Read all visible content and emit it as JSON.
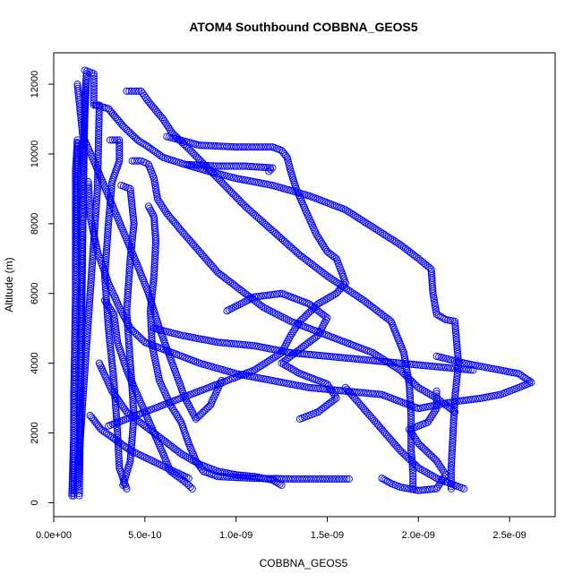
{
  "chart_data": {
    "type": "scatter",
    "title": "ATOM4 Southbound COBBNA_GEOS5",
    "xlabel": "COBBNA_GEOS5",
    "ylabel": "Altitude (m)",
    "xlim": [
      0,
      2.75e-09
    ],
    "ylim": [
      -400,
      12900
    ],
    "x_ticks": [
      0,
      5e-10,
      1e-09,
      1.5e-09,
      2e-09,
      2.5e-09
    ],
    "x_tick_labels": [
      "0.0e+00",
      "5.0e-10",
      "1.0e-09",
      "1.5e-09",
      "2.0e-09",
      "2.5e-09"
    ],
    "y_ticks": [
      0,
      2000,
      4000,
      6000,
      8000,
      10000,
      12000
    ],
    "y_tick_labels": [
      "0",
      "2000",
      "4000",
      "6000",
      "8000",
      "10000",
      "12000"
    ],
    "marker": "open-circle",
    "grid": false,
    "color": "#0000ff",
    "series": [
      {
        "points": [
          [
            1.1e-10,
            200
          ],
          [
            1.1e-10,
            3000
          ],
          [
            1.2e-10,
            6000
          ],
          [
            1.2e-10,
            9500
          ],
          [
            1.3e-10,
            10400
          ],
          [
            1.3e-10,
            10300
          ],
          [
            1.2e-10,
            6000
          ],
          [
            1.1e-10,
            2000
          ],
          [
            1e-10,
            200
          ]
        ]
      },
      {
        "points": [
          [
            1.4e-10,
            200
          ],
          [
            1.5e-10,
            4000
          ],
          [
            1.6e-10,
            8000
          ],
          [
            1.7e-10,
            11500
          ],
          [
            1.8e-10,
            12300
          ],
          [
            1.7e-10,
            11000
          ],
          [
            1.5e-10,
            6000
          ],
          [
            1.4e-10,
            1000
          ]
        ]
      },
      {
        "points": [
          [
            1.7e-10,
            12400
          ],
          [
            2.2e-10,
            12300
          ],
          [
            2.2e-10,
            11400
          ],
          [
            2.5e-10,
            11400
          ],
          [
            2.4e-10,
            9000
          ],
          [
            2e-10,
            6000
          ],
          [
            1.6e-10,
            3000
          ],
          [
            1.3e-10,
            500
          ]
        ]
      },
      {
        "points": [
          [
            2.3e-10,
            11400
          ],
          [
            3e-10,
            11300
          ],
          [
            3.8e-10,
            10800
          ],
          [
            4.6e-10,
            10400
          ],
          [
            5.2e-10,
            10200
          ],
          [
            6e-10,
            9900
          ],
          [
            7.2e-10,
            9700
          ],
          [
            8.5e-10,
            9500
          ],
          [
            1e-09,
            9300
          ],
          [
            1.2e-09,
            9100
          ],
          [
            1.4e-09,
            8800
          ],
          [
            1.6e-09,
            8400
          ],
          [
            1.75e-09,
            7900
          ],
          [
            1.9e-09,
            7400
          ],
          [
            2e-09,
            7000
          ],
          [
            2.07e-09,
            6700
          ],
          [
            2.08e-09,
            6000
          ],
          [
            2.1e-09,
            5400
          ],
          [
            2.15e-09,
            5250
          ],
          [
            2.2e-09,
            5200
          ],
          [
            2.22e-09,
            4000
          ],
          [
            2.2e-09,
            3000
          ],
          [
            2.19e-09,
            2000
          ],
          [
            2.18e-09,
            1000
          ],
          [
            2.18e-09,
            400
          ]
        ]
      },
      {
        "points": [
          [
            4e-10,
            11800
          ],
          [
            4.8e-10,
            11800
          ],
          [
            5.2e-10,
            11500
          ],
          [
            6e-10,
            11000
          ],
          [
            6.5e-10,
            10600
          ],
          [
            7.5e-10,
            10100
          ],
          [
            9e-10,
            9300
          ],
          [
            1.05e-09,
            8500
          ],
          [
            1.2e-09,
            7800
          ],
          [
            1.35e-09,
            7100
          ],
          [
            1.5e-09,
            6500
          ],
          [
            1.7e-09,
            5800
          ],
          [
            1.85e-09,
            5200
          ],
          [
            1.92e-09,
            4300
          ],
          [
            1.95e-09,
            3400
          ],
          [
            1.96e-09,
            2500
          ],
          [
            1.96e-09,
            1500
          ],
          [
            1.97e-09,
            900
          ],
          [
            1.97e-09,
            400
          ]
        ]
      },
      {
        "points": [
          [
            6.2e-10,
            10500
          ],
          [
            8e-10,
            10250
          ],
          [
            1e-09,
            10200
          ],
          [
            1.2e-09,
            10200
          ],
          [
            1.25e-09,
            10100
          ],
          [
            1.28e-09,
            9900
          ],
          [
            1.3e-09,
            9500
          ],
          [
            1.33e-09,
            9000
          ],
          [
            1.38e-09,
            8400
          ],
          [
            1.44e-09,
            7700
          ],
          [
            1.5e-09,
            7200
          ],
          [
            1.55e-09,
            7000
          ],
          [
            1.58e-09,
            6600
          ],
          [
            1.6e-09,
            6300
          ],
          [
            1.55e-09,
            6000
          ],
          [
            1.45e-09,
            5700
          ],
          [
            1.35e-09,
            5200
          ],
          [
            1.3e-09,
            4800
          ],
          [
            1.25e-09,
            4300
          ],
          [
            1.1e-09,
            3800
          ],
          [
            9e-10,
            3400
          ],
          [
            7e-10,
            3000
          ],
          [
            5e-10,
            2600
          ],
          [
            3e-10,
            2200
          ]
        ]
      },
      {
        "points": [
          [
            7.2e-10,
            9700
          ],
          [
            9e-10,
            9650
          ],
          [
            1.05e-09,
            9650
          ],
          [
            1.2e-09,
            9600
          ],
          [
            1.18e-09,
            9500
          ]
        ]
      },
      {
        "points": [
          [
            3.1e-10,
            10400
          ],
          [
            3.6e-10,
            10400
          ],
          [
            3.6e-10,
            9800
          ],
          [
            3.2e-10,
            9200
          ],
          [
            3e-10,
            8000
          ],
          [
            2.8e-10,
            6500
          ],
          [
            3e-10,
            5000
          ],
          [
            3.3e-10,
            3500
          ],
          [
            3.5e-10,
            2000
          ],
          [
            3.6e-10,
            1000
          ],
          [
            4e-10,
            400
          ]
        ]
      },
      {
        "points": [
          [
            4.3e-10,
            9800
          ],
          [
            4.8e-10,
            9800
          ],
          [
            5.2e-10,
            9700
          ],
          [
            5.5e-10,
            9300
          ],
          [
            5.7e-10,
            8700
          ],
          [
            6.2e-10,
            8300
          ],
          [
            7e-10,
            7800
          ],
          [
            8e-10,
            7200
          ],
          [
            9e-10,
            6600
          ],
          [
            1e-09,
            6200
          ],
          [
            1.15e-09,
            5600
          ],
          [
            1.3e-09,
            5200
          ],
          [
            1.45e-09,
            4900
          ],
          [
            1.6e-09,
            4600
          ],
          [
            1.75e-09,
            4300
          ],
          [
            1.9e-09,
            3800
          ],
          [
            2e-09,
            3300
          ],
          [
            2.1e-09,
            3000
          ],
          [
            2.2e-09,
            2600
          ]
        ]
      },
      {
        "points": [
          [
            3.7e-10,
            9100
          ],
          [
            4.2e-10,
            9000
          ],
          [
            4.4e-10,
            8000
          ],
          [
            4.2e-10,
            7000
          ],
          [
            4e-10,
            5500
          ],
          [
            4.2e-10,
            4000
          ],
          [
            4.4e-10,
            2500
          ],
          [
            4.2e-10,
            1200
          ],
          [
            3.8e-10,
            500
          ]
        ]
      },
      {
        "points": [
          [
            5.2e-10,
            8500
          ],
          [
            5.5e-10,
            8200
          ],
          [
            5.6e-10,
            7500
          ],
          [
            5.5e-10,
            6500
          ],
          [
            5.3e-10,
            5500
          ],
          [
            5.4e-10,
            4500
          ],
          [
            5.8e-10,
            3500
          ],
          [
            6.4e-10,
            2800
          ],
          [
            7e-10,
            2300
          ],
          [
            7.4e-10,
            1700
          ],
          [
            7.8e-10,
            1200
          ],
          [
            8.2e-10,
            900
          ],
          [
            9e-10,
            750
          ],
          [
            1.1e-09,
            700
          ],
          [
            1.3e-09,
            680
          ],
          [
            1.5e-09,
            680
          ],
          [
            1.62e-09,
            680
          ]
        ]
      },
      {
        "points": [
          [
            1.9e-10,
            9200
          ],
          [
            2e-10,
            8200
          ],
          [
            2.4e-10,
            7200
          ],
          [
            3e-10,
            6300
          ],
          [
            3.6e-10,
            5600
          ],
          [
            4.2e-10,
            5000
          ],
          [
            5e-10,
            4600
          ],
          [
            6.5e-10,
            4300
          ],
          [
            8e-10,
            4000
          ],
          [
            1e-09,
            3700
          ],
          [
            1.2e-09,
            3500
          ],
          [
            1.4e-09,
            3300
          ],
          [
            1.6e-09,
            3200
          ],
          [
            1.8e-09,
            3100
          ],
          [
            2e-09,
            2700
          ],
          [
            2.2e-09,
            2900
          ],
          [
            2.35e-09,
            3000
          ],
          [
            2.45e-09,
            3100
          ],
          [
            2.55e-09,
            3300
          ],
          [
            2.62e-09,
            3450
          ],
          [
            2.55e-09,
            3700
          ],
          [
            2.4e-09,
            3850
          ],
          [
            2.25e-09,
            4000
          ],
          [
            2.1e-09,
            4200
          ]
        ]
      },
      {
        "points": [
          [
            5.5e-10,
            5000
          ],
          [
            7e-10,
            4800
          ],
          [
            9e-10,
            4600
          ],
          [
            1.1e-09,
            4500
          ],
          [
            1.3e-09,
            4300
          ],
          [
            1.5e-09,
            4200
          ],
          [
            1.7e-09,
            4100
          ],
          [
            1.9e-09,
            4000
          ],
          [
            2.1e-09,
            3900
          ],
          [
            2.3e-09,
            3800
          ]
        ]
      },
      {
        "points": [
          [
            9.5e-10,
            5500
          ],
          [
            1.1e-09,
            5900
          ],
          [
            1.25e-09,
            6000
          ],
          [
            1.4e-09,
            5700
          ],
          [
            1.5e-09,
            5300
          ],
          [
            1.45e-09,
            4800
          ],
          [
            1.35e-09,
            4400
          ],
          [
            1.25e-09,
            4000
          ],
          [
            1.35e-09,
            3700
          ],
          [
            1.5e-09,
            3400
          ],
          [
            1.55e-09,
            3000
          ],
          [
            1.45e-09,
            2600
          ],
          [
            1.35e-09,
            2400
          ]
        ]
      },
      {
        "points": [
          [
            1.6e-09,
            3300
          ],
          [
            1.7e-09,
            2700
          ],
          [
            1.8e-09,
            2100
          ],
          [
            1.9e-09,
            1500
          ],
          [
            2e-09,
            1000
          ],
          [
            2.1e-09,
            700
          ],
          [
            2.2e-09,
            500
          ],
          [
            2.25e-09,
            400
          ]
        ]
      },
      {
        "points": [
          [
            2.8e-10,
            5800
          ],
          [
            3.3e-10,
            5400
          ],
          [
            3.5e-10,
            4600
          ],
          [
            4e-10,
            3800
          ],
          [
            4.5e-10,
            3200
          ],
          [
            5e-10,
            2600
          ],
          [
            5.5e-10,
            2000
          ],
          [
            6e-10,
            1400
          ],
          [
            6.4e-10,
            900
          ],
          [
            7.2e-10,
            600
          ],
          [
            7.6e-10,
            400
          ]
        ]
      },
      {
        "points": [
          [
            2.5e-10,
            4000
          ],
          [
            3.2e-10,
            3200
          ],
          [
            4e-10,
            2600
          ],
          [
            5e-10,
            2200
          ],
          [
            6e-10,
            1800
          ],
          [
            7e-10,
            1400
          ],
          [
            8e-10,
            1100
          ],
          [
            9e-10,
            900
          ],
          [
            1e-09,
            800
          ],
          [
            1.1e-09,
            750
          ],
          [
            1.2e-09,
            650
          ],
          [
            1.25e-09,
            500
          ]
        ]
      },
      {
        "points": [
          [
            1.8e-09,
            700
          ],
          [
            1.85e-09,
            550
          ],
          [
            1.9e-09,
            450
          ],
          [
            2e-09,
            350
          ],
          [
            2.1e-09,
            400
          ],
          [
            2.15e-09,
            800
          ],
          [
            2.1e-09,
            1200
          ],
          [
            2e-09,
            1700
          ],
          [
            1.95e-09,
            2100
          ],
          [
            2.05e-09,
            2300
          ],
          [
            2.1e-09,
            2700
          ],
          [
            2.1e-09,
            3200
          ]
        ]
      },
      {
        "points": [
          [
            2e-10,
            2500
          ],
          [
            2.6e-10,
            2100
          ],
          [
            3.4e-10,
            1800
          ],
          [
            4.2e-10,
            1500
          ],
          [
            5e-10,
            1300
          ],
          [
            5.8e-10,
            1100
          ],
          [
            6.6e-10,
            900
          ],
          [
            7.4e-10,
            700
          ]
        ]
      },
      {
        "points": [
          [
            1.3e-10,
            12000
          ],
          [
            1.4e-10,
            11500
          ],
          [
            1.6e-10,
            10500
          ],
          [
            2.2e-10,
            9800
          ],
          [
            3e-10,
            8800
          ],
          [
            3.8e-10,
            7800
          ],
          [
            4.6e-10,
            6800
          ],
          [
            5.2e-10,
            6000
          ],
          [
            5.8e-10,
            5000
          ],
          [
            6.5e-10,
            4000
          ],
          [
            7.2e-10,
            3000
          ],
          [
            7.8e-10,
            2400
          ],
          [
            8.6e-10,
            2800
          ],
          [
            9.2e-10,
            3500
          ]
        ]
      }
    ]
  }
}
